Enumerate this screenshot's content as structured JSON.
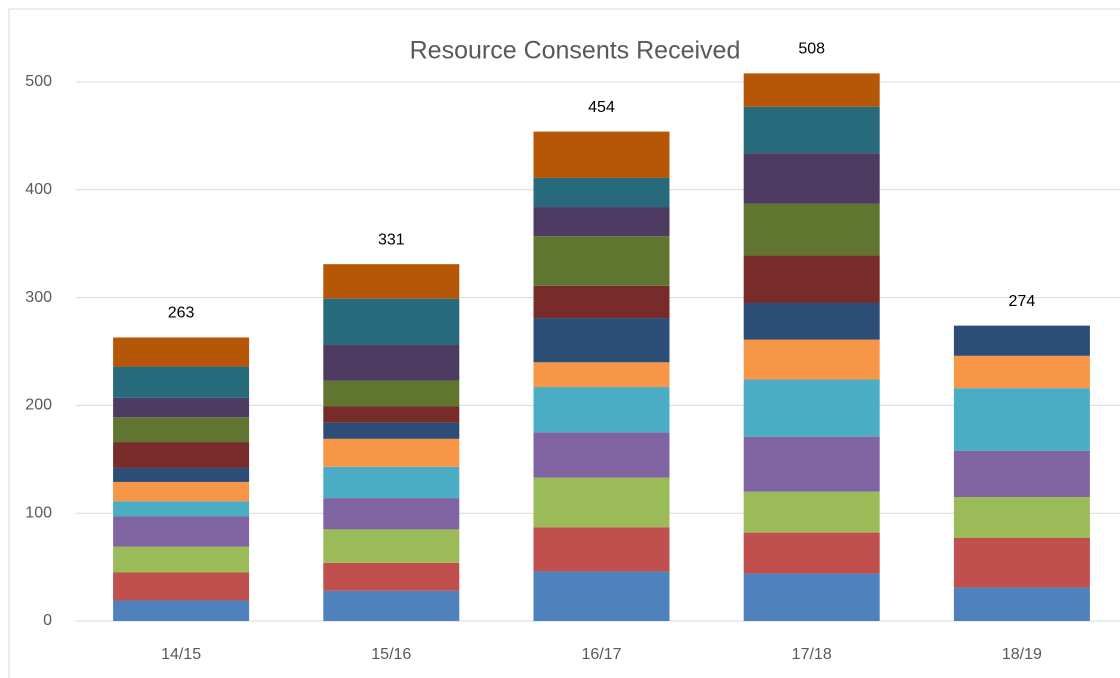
{
  "chart_data": {
    "type": "stacked_bar",
    "title": "Resource Consents Received",
    "categories": [
      "14/15",
      "15/16",
      "16/17",
      "17/18",
      "18/19"
    ],
    "series": [
      {
        "color": "#4f81bd",
        "values": [
          19,
          28,
          46,
          44,
          31
        ]
      },
      {
        "color": "#c0504d",
        "values": [
          26,
          26,
          41,
          38,
          46
        ]
      },
      {
        "color": "#9bbb59",
        "values": [
          24,
          31,
          46,
          38,
          38
        ]
      },
      {
        "color": "#8064a2",
        "values": [
          28,
          29,
          42,
          51,
          43
        ]
      },
      {
        "color": "#4bacc6",
        "values": [
          14,
          29,
          42,
          53,
          58
        ]
      },
      {
        "color": "#f79646",
        "values": [
          18,
          26,
          23,
          37,
          30
        ]
      },
      {
        "color": "#2c4d75",
        "values": [
          13,
          15,
          41,
          34,
          28
        ]
      },
      {
        "color": "#772c2a",
        "values": [
          24,
          15,
          30,
          44,
          null
        ]
      },
      {
        "color": "#5f7530",
        "values": [
          23,
          24,
          46,
          48,
          null
        ]
      },
      {
        "color": "#4d3b62",
        "values": [
          18,
          33,
          27,
          47,
          null
        ]
      },
      {
        "color": "#276a7c",
        "values": [
          29,
          43,
          27,
          43,
          null
        ]
      },
      {
        "color": "#b65708",
        "values": [
          27,
          32,
          43,
          31,
          null
        ]
      }
    ],
    "totals": [
      263,
      331,
      454,
      508,
      274
    ],
    "ylim": [
      0,
      500
    ],
    "yticks": [
      0,
      100,
      200,
      300,
      400,
      500
    ],
    "grid": true
  }
}
